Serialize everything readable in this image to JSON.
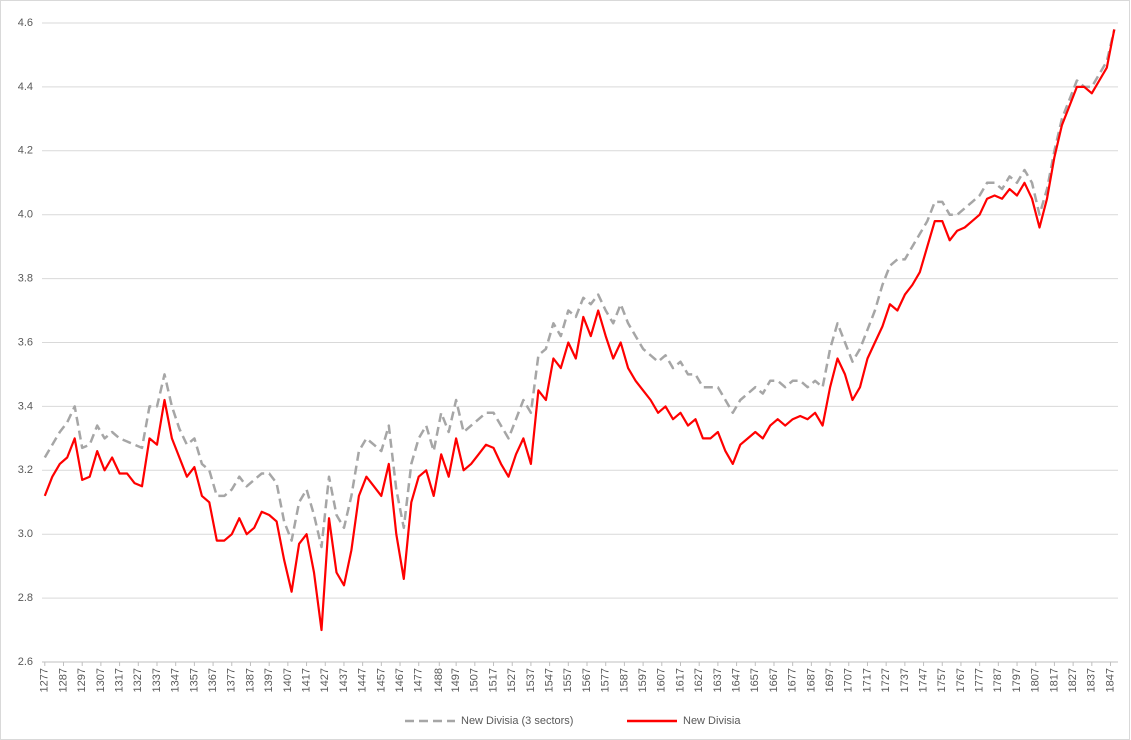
{
  "chart_data": {
    "type": "line",
    "x": [
      1277,
      1281,
      1285,
      1289,
      1293,
      1297,
      1301,
      1305,
      1309,
      1313,
      1317,
      1321,
      1325,
      1329,
      1333,
      1337,
      1341,
      1345,
      1349,
      1353,
      1357,
      1361,
      1365,
      1369,
      1373,
      1377,
      1381,
      1385,
      1389,
      1393,
      1397,
      1401,
      1405,
      1409,
      1413,
      1417,
      1421,
      1425,
      1429,
      1433,
      1437,
      1441,
      1445,
      1449,
      1453,
      1457,
      1461,
      1465,
      1469,
      1473,
      1477,
      1481,
      1485,
      1489,
      1493,
      1497,
      1501,
      1505,
      1509,
      1513,
      1517,
      1521,
      1525,
      1529,
      1533,
      1537,
      1541,
      1545,
      1549,
      1553,
      1557,
      1561,
      1565,
      1569,
      1573,
      1577,
      1581,
      1585,
      1589,
      1593,
      1597,
      1601,
      1605,
      1609,
      1613,
      1617,
      1621,
      1625,
      1629,
      1633,
      1637,
      1641,
      1645,
      1649,
      1653,
      1657,
      1661,
      1665,
      1669,
      1673,
      1677,
      1681,
      1685,
      1689,
      1693,
      1697,
      1701,
      1705,
      1709,
      1713,
      1717,
      1721,
      1725,
      1729,
      1733,
      1737,
      1741,
      1745,
      1749,
      1753,
      1757,
      1761,
      1765,
      1769,
      1773,
      1777,
      1781,
      1785,
      1789,
      1793,
      1797,
      1801,
      1805,
      1809,
      1813,
      1817,
      1821,
      1825,
      1829,
      1833,
      1837,
      1841,
      1845,
      1849
    ],
    "series": [
      {
        "name": "New Divisia (3 sectors)",
        "color": "#a6a6a6",
        "dashed": true,
        "values": [
          3.24,
          3.28,
          3.32,
          3.35,
          3.4,
          3.27,
          3.28,
          3.34,
          3.3,
          3.32,
          3.3,
          3.29,
          3.28,
          3.27,
          3.4,
          3.4,
          3.5,
          3.4,
          3.33,
          3.28,
          3.3,
          3.22,
          3.2,
          3.12,
          3.12,
          3.14,
          3.18,
          3.15,
          3.17,
          3.19,
          3.19,
          3.16,
          3.04,
          2.98,
          3.1,
          3.14,
          3.06,
          2.96,
          3.18,
          3.06,
          3.02,
          3.12,
          3.26,
          3.3,
          3.28,
          3.26,
          3.34,
          3.14,
          3.02,
          3.22,
          3.3,
          3.34,
          3.26,
          3.38,
          3.32,
          3.42,
          3.32,
          3.34,
          3.36,
          3.38,
          3.38,
          3.34,
          3.3,
          3.36,
          3.42,
          3.38,
          3.56,
          3.58,
          3.66,
          3.62,
          3.7,
          3.68,
          3.74,
          3.72,
          3.75,
          3.7,
          3.66,
          3.72,
          3.66,
          3.62,
          3.58,
          3.56,
          3.54,
          3.56,
          3.52,
          3.54,
          3.5,
          3.5,
          3.46,
          3.46,
          3.46,
          3.42,
          3.38,
          3.42,
          3.44,
          3.46,
          3.44,
          3.48,
          3.48,
          3.46,
          3.48,
          3.48,
          3.46,
          3.48,
          3.46,
          3.58,
          3.66,
          3.6,
          3.54,
          3.58,
          3.64,
          3.7,
          3.78,
          3.84,
          3.86,
          3.86,
          3.9,
          3.94,
          3.98,
          4.04,
          4.04,
          4.0,
          4.0,
          4.02,
          4.04,
          4.06,
          4.1,
          4.1,
          4.08,
          4.12,
          4.1,
          4.14,
          4.1,
          4.0,
          4.08,
          4.2,
          4.3,
          4.36,
          4.42,
          4.4,
          4.4,
          4.44,
          4.48,
          4.58
        ]
      },
      {
        "name": "New Divisia",
        "color": "#ff0000",
        "dashed": false,
        "values": [
          3.12,
          3.18,
          3.22,
          3.24,
          3.3,
          3.17,
          3.18,
          3.26,
          3.2,
          3.24,
          3.19,
          3.19,
          3.16,
          3.15,
          3.3,
          3.28,
          3.42,
          3.3,
          3.24,
          3.18,
          3.21,
          3.12,
          3.1,
          2.98,
          2.98,
          3.0,
          3.05,
          3.0,
          3.02,
          3.07,
          3.06,
          3.04,
          2.92,
          2.82,
          2.97,
          3.0,
          2.88,
          2.7,
          3.05,
          2.88,
          2.84,
          2.95,
          3.12,
          3.18,
          3.15,
          3.12,
          3.22,
          3.0,
          2.86,
          3.1,
          3.18,
          3.2,
          3.12,
          3.25,
          3.18,
          3.3,
          3.2,
          3.22,
          3.25,
          3.28,
          3.27,
          3.22,
          3.18,
          3.25,
          3.3,
          3.22,
          3.45,
          3.42,
          3.55,
          3.52,
          3.6,
          3.55,
          3.68,
          3.62,
          3.7,
          3.62,
          3.55,
          3.6,
          3.52,
          3.48,
          3.45,
          3.42,
          3.38,
          3.4,
          3.36,
          3.38,
          3.34,
          3.36,
          3.3,
          3.3,
          3.32,
          3.26,
          3.22,
          3.28,
          3.3,
          3.32,
          3.3,
          3.34,
          3.36,
          3.34,
          3.36,
          3.37,
          3.36,
          3.38,
          3.34,
          3.46,
          3.55,
          3.5,
          3.42,
          3.46,
          3.55,
          3.6,
          3.65,
          3.72,
          3.7,
          3.75,
          3.78,
          3.82,
          3.9,
          3.98,
          3.98,
          3.92,
          3.95,
          3.96,
          3.98,
          4.0,
          4.05,
          4.06,
          4.05,
          4.08,
          4.06,
          4.1,
          4.05,
          3.96,
          4.05,
          4.18,
          4.28,
          4.34,
          4.4,
          4.4,
          4.38,
          4.42,
          4.46,
          4.58
        ]
      }
    ],
    "xlim": [
      1275.5,
      1851
    ],
    "xticks": [
      1277,
      1287,
      1297,
      1307,
      1317,
      1327,
      1337,
      1347,
      1357,
      1367,
      1377,
      1387,
      1397,
      1407,
      1417,
      1427,
      1437,
      1447,
      1457,
      1467,
      1477,
      1488,
      1497,
      1507,
      1517,
      1527,
      1537,
      1547,
      1557,
      1567,
      1577,
      1587,
      1597,
      1607,
      1617,
      1627,
      1637,
      1647,
      1657,
      1667,
      1677,
      1687,
      1697,
      1707,
      1717,
      1727,
      1737,
      1747,
      1757,
      1767,
      1777,
      1787,
      1797,
      1807,
      1817,
      1827,
      1837,
      1847
    ],
    "ylim": [
      2.6,
      4.6
    ],
    "yticks": [
      2.6,
      2.8,
      {
        "value": 3,
        "label": "3.0"
      },
      3.2,
      3.4,
      3.6,
      3.8,
      {
        "value": 4,
        "label": "4.0"
      },
      4.2,
      4.4,
      4.6
    ],
    "grid": true
  }
}
